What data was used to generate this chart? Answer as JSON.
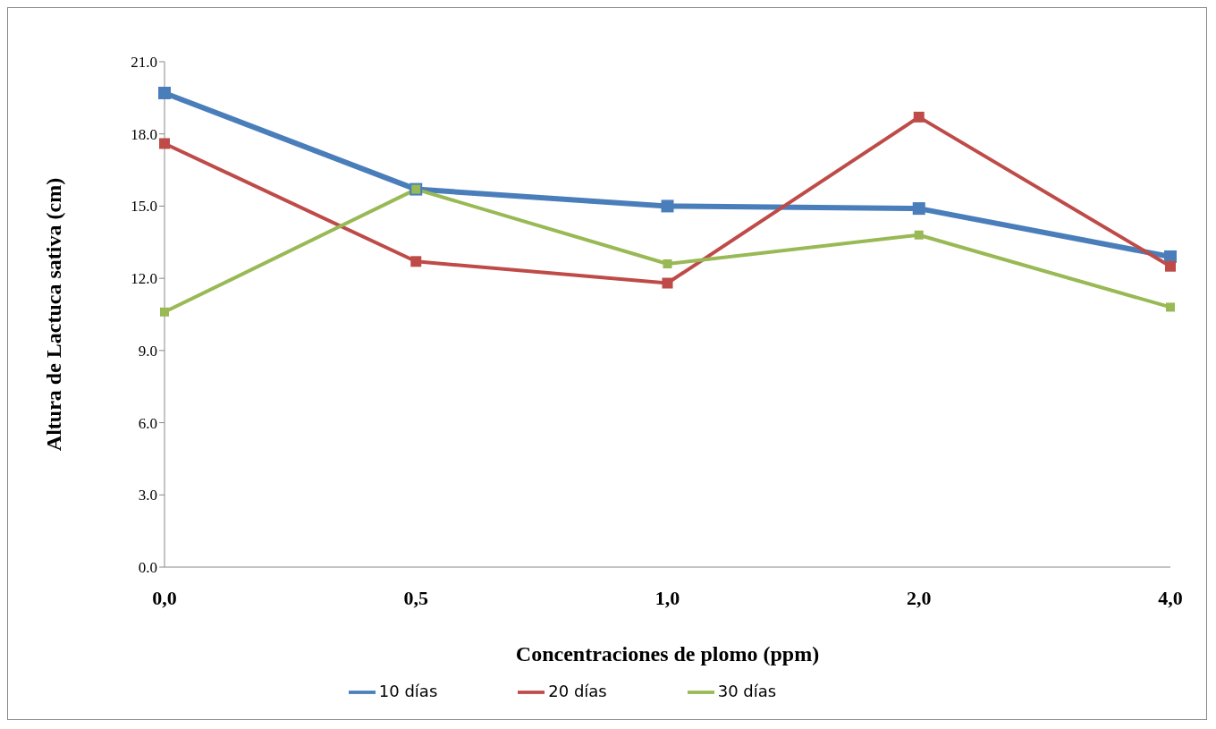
{
  "chart_data": {
    "type": "line",
    "xlabel": "Concentraciones de  plomo (ppm)",
    "ylabel": "Altura de  Lactuca sativa  (cm)",
    "categories": [
      "0,0",
      "0,5",
      "1,0",
      "2,0",
      "4,0"
    ],
    "series": [
      {
        "name": "10 días",
        "color": "#4a7ebb",
        "values": [
          19.7,
          15.7,
          15.0,
          14.9,
          12.9
        ]
      },
      {
        "name": "20 días",
        "color": "#be4b48",
        "values": [
          17.6,
          12.7,
          11.8,
          18.7,
          12.5
        ]
      },
      {
        "name": "30 días",
        "color": "#98b954",
        "values": [
          10.6,
          15.7,
          12.6,
          13.8,
          10.8
        ]
      }
    ],
    "ylim": [
      0,
      21
    ],
    "yticks": [
      {
        "value": 0,
        "label": "0.0"
      },
      {
        "value": 3,
        "label": "3.0"
      },
      {
        "value": 6,
        "label": "6.0"
      },
      {
        "value": 9,
        "label": "9.0"
      },
      {
        "value": 12,
        "label": "12.0"
      },
      {
        "value": 15,
        "label": "15.0"
      },
      {
        "value": 18,
        "label": "18.0"
      },
      {
        "value": 21,
        "label": "21.0"
      }
    ],
    "grid": false,
    "legend": "bottom",
    "marker": "square",
    "line_style": "solid"
  }
}
